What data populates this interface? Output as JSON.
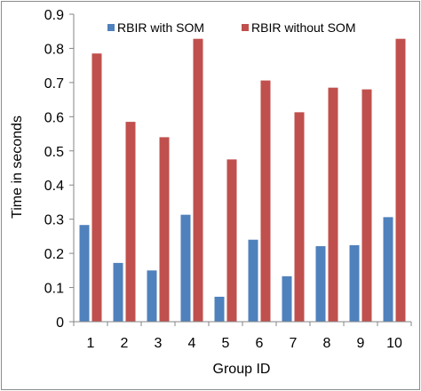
{
  "chart_data": {
    "type": "bar",
    "title": "",
    "xlabel": "Group ID",
    "ylabel": "Time in seconds",
    "categories": [
      "1",
      "2",
      "3",
      "4",
      "5",
      "6",
      "7",
      "8",
      "9",
      "10"
    ],
    "ylim": [
      0,
      0.9
    ],
    "yticks": [
      "0",
      "0.1",
      "0.2",
      "0.3",
      "0.4",
      "0.5",
      "0.6",
      "0.7",
      "0.8",
      "0.9"
    ],
    "grid": false,
    "legend_position": "top",
    "series": [
      {
        "name": "RBIR with SOM",
        "color": "#4f81bd",
        "values": [
          0.283,
          0.172,
          0.15,
          0.313,
          0.073,
          0.24,
          0.133,
          0.221,
          0.224,
          0.306
        ]
      },
      {
        "name": "RBIR without SOM",
        "color": "#c0504d",
        "values": [
          0.785,
          0.585,
          0.54,
          0.828,
          0.475,
          0.706,
          0.613,
          0.685,
          0.68,
          0.828
        ]
      }
    ]
  }
}
